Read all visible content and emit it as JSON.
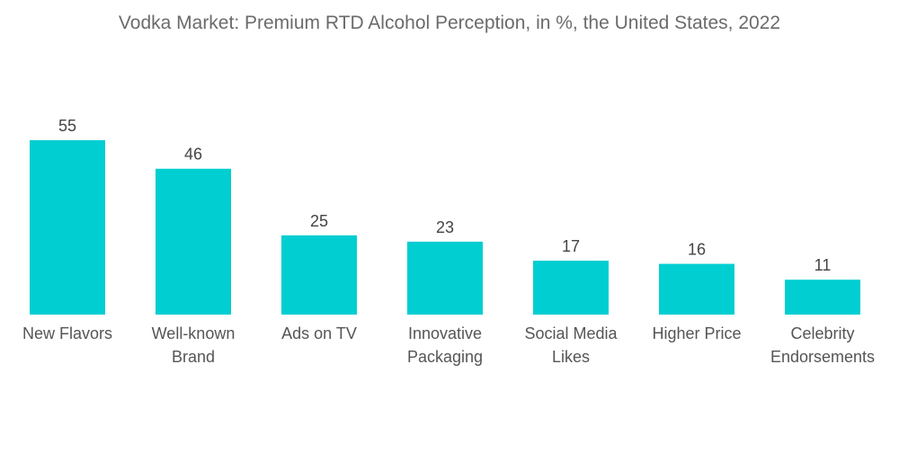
{
  "chart_data": {
    "type": "bar",
    "title": "Vodka Market: Premium RTD Alcohol Perception, in %, the United States, 2022",
    "xlabel": "",
    "ylabel": "",
    "ylim": [
      0,
      55
    ],
    "grid": false,
    "legend": "none",
    "bar_color": "#00CED1",
    "categories": [
      [
        "New Flavors"
      ],
      [
        "Well-known",
        "Brand"
      ],
      [
        "Ads on TV"
      ],
      [
        "Innovative",
        "Packaging"
      ],
      [
        "Social Media",
        "Likes"
      ],
      [
        "Higher Price"
      ],
      [
        "Celebrity",
        "Endorsements"
      ]
    ],
    "values": [
      55,
      46,
      25,
      23,
      17,
      16,
      11
    ]
  }
}
